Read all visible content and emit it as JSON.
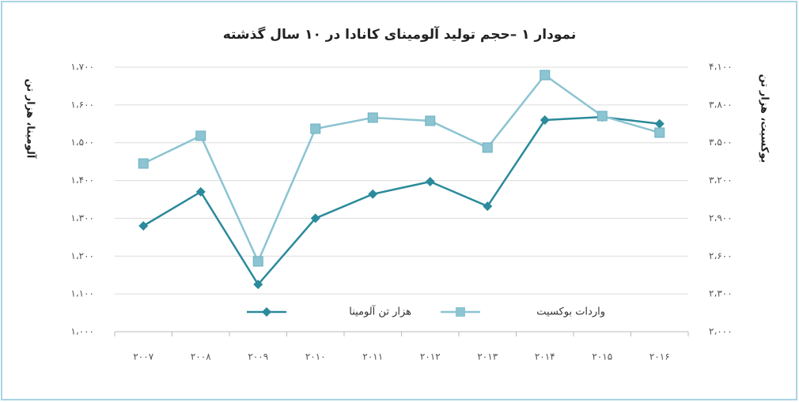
{
  "chart_data": {
    "type": "line",
    "title": "نمودار ۱ –حجم تولید آلومینای کانادا در ۱۰ سال گذشته",
    "ylabel": "آلومینا، هزار تن",
    "y2label": "بوکسیت، هزار تن",
    "categories": [
      "۲۰۰۷",
      "۲۰۰۸",
      "۲۰۰۹",
      "۲۰۱۰",
      "۲۰۱۱",
      "۲۰۱۲",
      "۲۰۱۳",
      "۲۰۱۴",
      "۲۰۱۵",
      "۲۰۱۶"
    ],
    "series": [
      {
        "name": "هزار تن آلومینا",
        "color": "#2b8a9b",
        "marker": "diamond",
        "axis": "y",
        "values": [
          1280,
          1370,
          1125,
          1300,
          1364,
          1397,
          1332,
          1560,
          1568,
          1550
        ]
      },
      {
        "name": "واردات بوکسیت",
        "color": "#8cc4d2",
        "marker": "square",
        "axis": "y2",
        "values": [
          3335,
          3555,
          2558,
          3611,
          3699,
          3674,
          3461,
          4037,
          3712,
          3580
        ]
      }
    ],
    "ylim": [
      1000,
      1700
    ],
    "yticks": [
      {
        "value": 1000,
        "label": "۱،۰۰۰"
      },
      {
        "value": 1100,
        "label": "۱،۱۰۰"
      },
      {
        "value": 1200,
        "label": "۱،۲۰۰"
      },
      {
        "value": 1300,
        "label": "۱،۳۰۰"
      },
      {
        "value": 1400,
        "label": "۱،۴۰۰"
      },
      {
        "value": 1500,
        "label": "۱،۵۰۰"
      },
      {
        "value": 1600,
        "label": "۱،۶۰۰"
      },
      {
        "value": 1700,
        "label": "۱،۷۰۰"
      }
    ],
    "y2lim": [
      2000,
      4100
    ],
    "y2ticks": [
      {
        "value": 2000,
        "label": "۲،۰۰۰"
      },
      {
        "value": 2300,
        "label": "۲،۳۰۰"
      },
      {
        "value": 2600,
        "label": "۲،۶۰۰"
      },
      {
        "value": 2900,
        "label": "۲،۹۰۰"
      },
      {
        "value": 3200,
        "label": "۳،۲۰۰"
      },
      {
        "value": 3500,
        "label": "۳،۵۰۰"
      },
      {
        "value": 3800,
        "label": "۳،۸۰۰"
      },
      {
        "value": 4100,
        "label": "۴،۱۰۰"
      }
    ],
    "grid": true,
    "legend": "bottom"
  }
}
